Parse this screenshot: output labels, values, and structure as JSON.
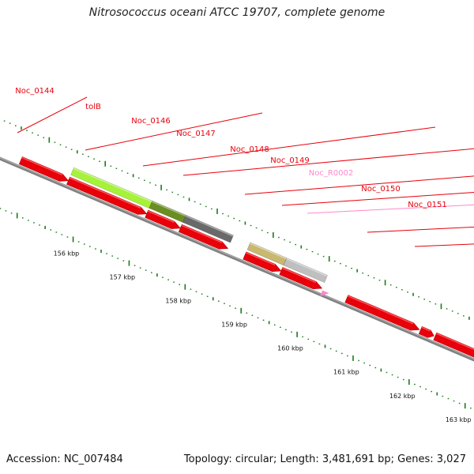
{
  "title": "Nitrosococcus oceani ATCC 19707, complete genome",
  "footer": {
    "accession": "Accession: NC_007484",
    "summary": "Topology: circular; Length: 3,481,691 bp; Genes: 3,027"
  },
  "colors": {
    "cds": "#e8000a",
    "cds_highlight": "#ff5555",
    "backbone": "#808080",
    "label_line": "#e8000a",
    "rna": "#ff88cc",
    "tick": "#1a7a1a"
  },
  "scale": {
    "unit": "kbp",
    "ticks": [
      {
        "kbp": 156,
        "label": "156 kbp"
      },
      {
        "kbp": 157,
        "label": "157 kbp"
      },
      {
        "kbp": 158,
        "label": "158 kbp"
      },
      {
        "kbp": 159,
        "label": "159 kbp"
      },
      {
        "kbp": 160,
        "label": "160 kbp"
      },
      {
        "kbp": 161,
        "label": "161 kbp"
      },
      {
        "kbp": 162,
        "label": "162 kbp"
      },
      {
        "kbp": 163,
        "label": "163 kbp"
      }
    ]
  },
  "genes": [
    {
      "name": "Noc_0144",
      "start": 154.7,
      "end": 155.55,
      "strand": "+",
      "type": "CDS"
    },
    {
      "name": "tolB",
      "start": 155.55,
      "end": 156.95,
      "strand": "+",
      "type": "CDS"
    },
    {
      "name": "Noc_0146",
      "start": 156.95,
      "end": 157.55,
      "strand": "+",
      "type": "CDS"
    },
    {
      "name": "Noc_0147",
      "start": 157.55,
      "end": 158.4,
      "strand": "+",
      "type": "CDS"
    },
    {
      "name": "Noc_0148",
      "start": 158.7,
      "end": 159.35,
      "strand": "+",
      "type": "CDS"
    },
    {
      "name": "Noc_0149",
      "start": 159.35,
      "end": 160.08,
      "strand": "+",
      "type": "CDS"
    },
    {
      "name": "Noc_R0002",
      "start": 160.1,
      "end": 160.22,
      "strand": "+",
      "type": "RNA",
      "label_color": "#ff88cc"
    },
    {
      "name": "Noc_0150",
      "start": 160.52,
      "end": 161.82,
      "strand": "+",
      "type": "CDS"
    },
    {
      "name": "Noc_0151",
      "start": 162.1,
      "end": 163.3,
      "strand": "+",
      "type": "CDS"
    }
  ],
  "small_cds": [
    {
      "start": 161.84,
      "end": 162.08,
      "strand": "+"
    }
  ],
  "shaded_bars": [
    {
      "start": 155.55,
      "end": 156.95,
      "color": "#a6f23a"
    },
    {
      "start": 156.95,
      "end": 157.55,
      "color": "#6b8e23"
    },
    {
      "start": 157.55,
      "end": 158.4,
      "color": "#696969"
    },
    {
      "start": 158.7,
      "end": 159.35,
      "color": "#c8b870"
    },
    {
      "start": 159.35,
      "end": 160.08,
      "color": "#bfbfbf"
    }
  ]
}
